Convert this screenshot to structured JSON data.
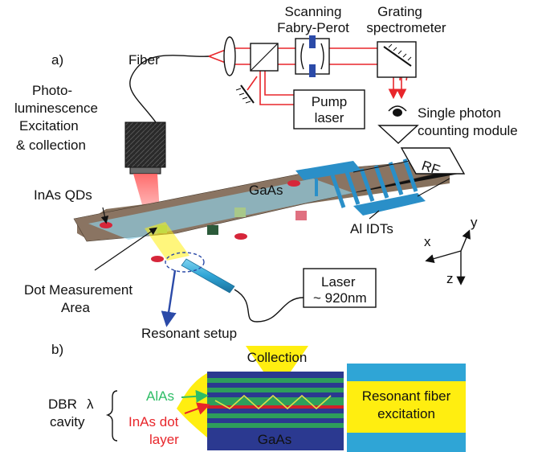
{
  "panel_a": {
    "label": "a)",
    "fiber": "Fiber",
    "pl_line1": "Photo-",
    "pl_line2": "luminescence",
    "pl_line3": "Excitation",
    "pl_line4": "& collection",
    "scanning_line1": "Scanning",
    "scanning_line2": "Fabry-Perot",
    "grating_line1": "Grating",
    "grating_line2": "spectrometer",
    "pump_line1": "Pump",
    "pump_line2": "laser",
    "spcm_line1": "Single photon",
    "spcm_line2": "counting module",
    "rf": "RF",
    "gaas": "GaAs",
    "inas_qds": "InAs QDs",
    "al_idts": "Al IDTs",
    "axis_x": "x",
    "axis_y": "y",
    "axis_z": "z",
    "dot_line1": "Dot Measurement",
    "dot_line2": "Area",
    "laser_line1": "Laser",
    "laser_line2": "~ 920nm",
    "resonant_setup": "Resonant setup"
  },
  "panel_b": {
    "label": "b)",
    "collection": "Collection",
    "dbr": "DBR",
    "lambda": "λ",
    "cavity": "cavity",
    "alas": "AlAs",
    "inas_line1": "InAs dot",
    "inas_line2": "layer",
    "gaas": "GaAs",
    "resonant_line1": "Resonant fiber",
    "resonant_line2": "excitation"
  },
  "colors": {
    "beam_red": "#e8262b",
    "substrate_brown": "#86715d",
    "idt_blue": "#2a8fc8",
    "fiber_blue": "#2fa5d6",
    "dbr_green": "#2e9e5b",
    "dbr_navy": "#2b3990",
    "highlight_yellow": "#ffee10",
    "alas_green": "#2ebd66",
    "arrow_blue": "#2b4aa8"
  }
}
